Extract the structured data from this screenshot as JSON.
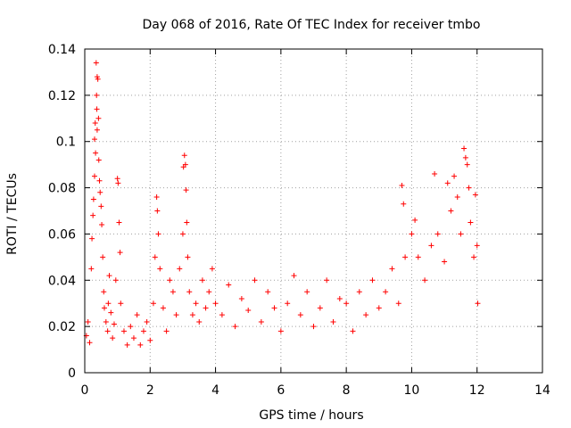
{
  "chart_data": {
    "type": "scatter",
    "title": "Day 068 of 2016, Rate Of TEC Index for receiver tmbo",
    "xlabel": "GPS time / hours",
    "ylabel": "ROTI / TECUs",
    "xlim": [
      0,
      14
    ],
    "ylim": [
      0,
      0.14
    ],
    "xticks": [
      0,
      2,
      4,
      6,
      8,
      10,
      12,
      14
    ],
    "xtick_labels": [
      "0",
      "2",
      "4",
      "6",
      "8",
      "10",
      "12",
      "14"
    ],
    "yticks": [
      0,
      0.02,
      0.04,
      0.06,
      0.08,
      0.1,
      0.12,
      0.14
    ],
    "ytick_labels": [
      "0",
      "0.02",
      "0.04",
      "0.06",
      "0.08",
      "0.1",
      "0.12",
      "0.14"
    ],
    "grid": true,
    "marker": "+",
    "marker_color": "#ff0000",
    "series": [
      {
        "name": "ROTI",
        "points": [
          [
            0.05,
            0.016
          ],
          [
            0.1,
            0.022
          ],
          [
            0.15,
            0.013
          ],
          [
            0.2,
            0.045
          ],
          [
            0.22,
            0.058
          ],
          [
            0.25,
            0.068
          ],
          [
            0.27,
            0.075
          ],
          [
            0.3,
            0.085
          ],
          [
            0.3,
            0.101
          ],
          [
            0.32,
            0.108
          ],
          [
            0.33,
            0.095
          ],
          [
            0.35,
            0.134
          ],
          [
            0.36,
            0.12
          ],
          [
            0.37,
            0.114
          ],
          [
            0.38,
            0.128
          ],
          [
            0.38,
            0.105
          ],
          [
            0.4,
            0.127
          ],
          [
            0.42,
            0.11
          ],
          [
            0.43,
            0.092
          ],
          [
            0.45,
            0.083
          ],
          [
            0.47,
            0.078
          ],
          [
            0.5,
            0.072
          ],
          [
            0.52,
            0.064
          ],
          [
            0.55,
            0.05
          ],
          [
            0.58,
            0.035
          ],
          [
            0.6,
            0.028
          ],
          [
            0.65,
            0.022
          ],
          [
            0.7,
            0.018
          ],
          [
            0.72,
            0.03
          ],
          [
            0.75,
            0.042
          ],
          [
            0.8,
            0.026
          ],
          [
            0.85,
            0.015
          ],
          [
            0.9,
            0.021
          ],
          [
            0.95,
            0.04
          ],
          [
            1.0,
            0.084
          ],
          [
            1.02,
            0.082
          ],
          [
            1.05,
            0.065
          ],
          [
            1.08,
            0.052
          ],
          [
            1.1,
            0.03
          ],
          [
            1.2,
            0.018
          ],
          [
            1.3,
            0.012
          ],
          [
            1.4,
            0.02
          ],
          [
            1.5,
            0.015
          ],
          [
            1.6,
            0.025
          ],
          [
            1.7,
            0.012
          ],
          [
            1.8,
            0.018
          ],
          [
            1.9,
            0.022
          ],
          [
            2.0,
            0.014
          ],
          [
            2.1,
            0.03
          ],
          [
            2.15,
            0.05
          ],
          [
            2.2,
            0.076
          ],
          [
            2.22,
            0.07
          ],
          [
            2.25,
            0.06
          ],
          [
            2.3,
            0.045
          ],
          [
            2.4,
            0.028
          ],
          [
            2.5,
            0.018
          ],
          [
            2.6,
            0.04
          ],
          [
            2.7,
            0.035
          ],
          [
            2.8,
            0.025
          ],
          [
            2.9,
            0.045
          ],
          [
            3.0,
            0.06
          ],
          [
            3.02,
            0.089
          ],
          [
            3.05,
            0.094
          ],
          [
            3.08,
            0.09
          ],
          [
            3.1,
            0.079
          ],
          [
            3.12,
            0.065
          ],
          [
            3.15,
            0.05
          ],
          [
            3.2,
            0.035
          ],
          [
            3.3,
            0.025
          ],
          [
            3.4,
            0.03
          ],
          [
            3.5,
            0.022
          ],
          [
            3.6,
            0.04
          ],
          [
            3.7,
            0.028
          ],
          [
            3.8,
            0.035
          ],
          [
            3.9,
            0.045
          ],
          [
            4.0,
            0.03
          ],
          [
            4.2,
            0.025
          ],
          [
            4.4,
            0.038
          ],
          [
            4.6,
            0.02
          ],
          [
            4.8,
            0.032
          ],
          [
            5.0,
            0.027
          ],
          [
            5.2,
            0.04
          ],
          [
            5.4,
            0.022
          ],
          [
            5.6,
            0.035
          ],
          [
            5.8,
            0.028
          ],
          [
            6.0,
            0.018
          ],
          [
            6.2,
            0.03
          ],
          [
            6.4,
            0.042
          ],
          [
            6.6,
            0.025
          ],
          [
            6.8,
            0.035
          ],
          [
            7.0,
            0.02
          ],
          [
            7.2,
            0.028
          ],
          [
            7.4,
            0.04
          ],
          [
            7.6,
            0.022
          ],
          [
            7.8,
            0.032
          ],
          [
            8.0,
            0.03
          ],
          [
            8.2,
            0.018
          ],
          [
            8.4,
            0.035
          ],
          [
            8.6,
            0.025
          ],
          [
            8.8,
            0.04
          ],
          [
            9.0,
            0.028
          ],
          [
            9.2,
            0.035
          ],
          [
            9.4,
            0.045
          ],
          [
            9.6,
            0.03
          ],
          [
            9.7,
            0.081
          ],
          [
            9.75,
            0.073
          ],
          [
            9.8,
            0.05
          ],
          [
            10.0,
            0.06
          ],
          [
            10.1,
            0.066
          ],
          [
            10.2,
            0.05
          ],
          [
            10.4,
            0.04
          ],
          [
            10.6,
            0.055
          ],
          [
            10.7,
            0.086
          ],
          [
            10.8,
            0.06
          ],
          [
            11.0,
            0.048
          ],
          [
            11.1,
            0.082
          ],
          [
            11.2,
            0.07
          ],
          [
            11.3,
            0.085
          ],
          [
            11.4,
            0.076
          ],
          [
            11.5,
            0.06
          ],
          [
            11.6,
            0.097
          ],
          [
            11.65,
            0.093
          ],
          [
            11.7,
            0.09
          ],
          [
            11.75,
            0.08
          ],
          [
            11.8,
            0.065
          ],
          [
            11.9,
            0.05
          ],
          [
            11.95,
            0.077
          ],
          [
            12.0,
            0.055
          ],
          [
            12.02,
            0.03
          ]
        ]
      }
    ]
  }
}
